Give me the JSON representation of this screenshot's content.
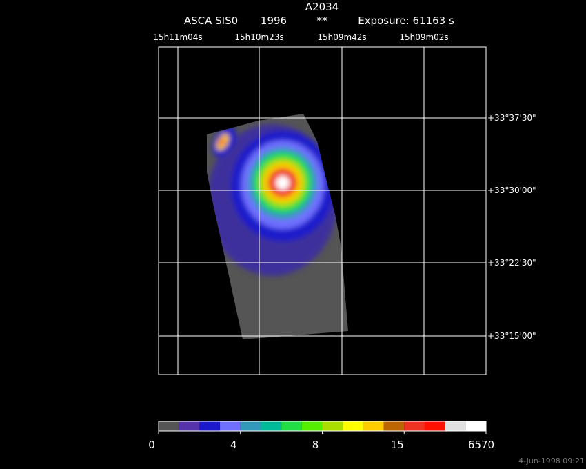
{
  "header": {
    "title": "A2034",
    "instrument": "ASCA SIS0",
    "year": "1996",
    "flag": "**",
    "exposure": "Exposure: 61163 s"
  },
  "ra_labels": [
    "15h11m04s",
    "15h10m23s",
    "15h09m42s",
    "15h09m02s"
  ],
  "dec_labels": [
    "+33°37'30\"",
    "+33°30'00\"",
    "+33°22'30\"",
    "+33°15'00\""
  ],
  "colorbar": {
    "colors": [
      "#555555",
      "#5533aa",
      "#1a1acc",
      "#7070ff",
      "#3399bb",
      "#00bb99",
      "#22dd44",
      "#55ee00",
      "#aadd00",
      "#ffff00",
      "#ffcc00",
      "#bb6600",
      "#ee3322",
      "#ff1100",
      "#e0e0e0",
      "#ffffff"
    ],
    "ticks": [
      0,
      4,
      8,
      15,
      6570
    ]
  },
  "footer": {
    "timestamp": "4-Jun-1998 09:21"
  }
}
